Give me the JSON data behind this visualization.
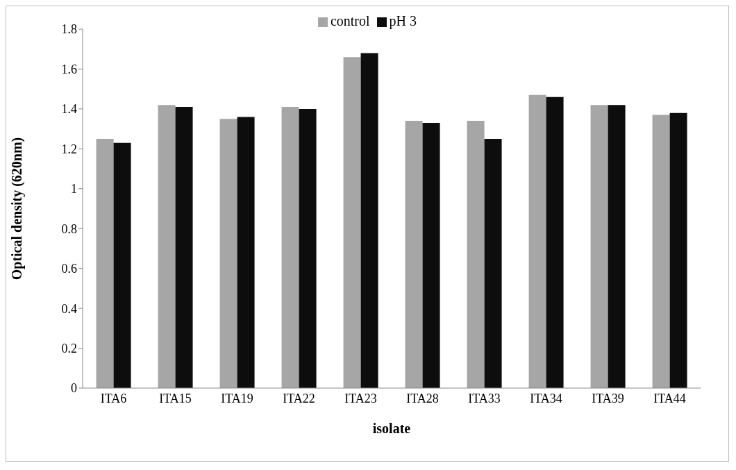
{
  "chart_data": {
    "type": "bar",
    "xlabel": "isolate",
    "ylabel": "Optical density (620nm)",
    "categories": [
      "ITA6",
      "ITA15",
      "ITA19",
      "ITA22",
      "ITA23",
      "ITA28",
      "ITA33",
      "ITA34",
      "ITA39",
      "ITA44"
    ],
    "series": [
      {
        "name": "control",
        "color": "#a6a6a6",
        "values": [
          1.25,
          1.42,
          1.35,
          1.41,
          1.66,
          1.34,
          1.34,
          1.47,
          1.42,
          1.37
        ]
      },
      {
        "name": "pH 3",
        "color": "#0d0d0d",
        "values": [
          1.23,
          1.41,
          1.36,
          1.4,
          1.68,
          1.33,
          1.25,
          1.46,
          1.42,
          1.38
        ]
      }
    ],
    "ylim": [
      0,
      1.8
    ],
    "yticks": [
      0,
      0.2,
      0.4,
      0.6,
      0.8,
      1,
      1.2,
      1.4,
      1.6,
      1.8
    ],
    "grid": false,
    "legend": "top"
  }
}
